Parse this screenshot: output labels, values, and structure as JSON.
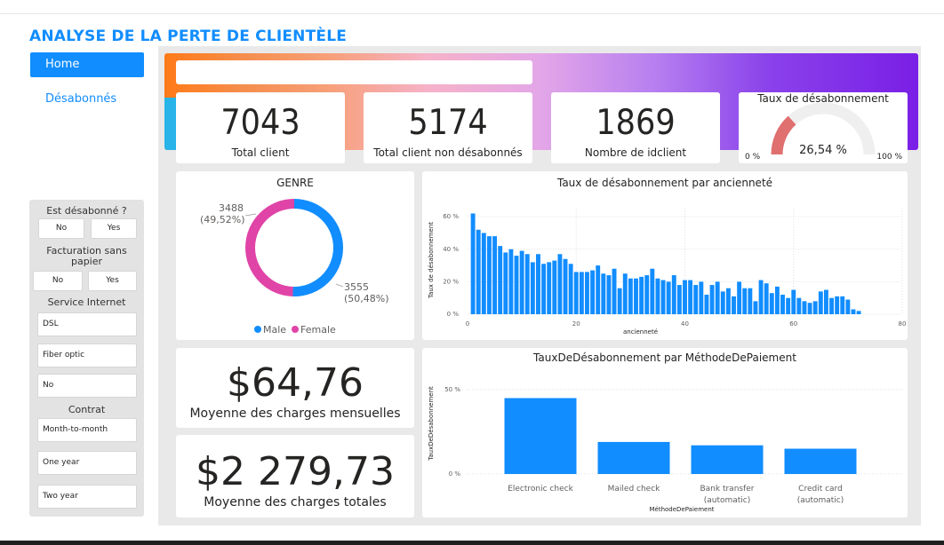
{
  "header": {
    "title": "ANALYSE DE LA PERTE DE CLIENTÈLE"
  },
  "nav": {
    "home": "Home",
    "unsubscribed": "Désabonnés"
  },
  "filters": {
    "churn_title": "Est désabonné ?",
    "churn_options": [
      "No",
      "Yes"
    ],
    "paperless_title": "Facturation sans papier",
    "paperless_options": [
      "No",
      "Yes"
    ],
    "internet_title": "Service Internet",
    "internet_options": [
      "DSL",
      "Fiber optic",
      "No"
    ],
    "contract_title": "Contrat",
    "contract_options": [
      "Month-to-month",
      "One year",
      "Two year"
    ]
  },
  "search": {
    "placeholder": ""
  },
  "kpis": [
    {
      "value": "7043",
      "label": "Total client"
    },
    {
      "value": "5174",
      "label": "Total client non désabonnés"
    },
    {
      "value": "1869",
      "label": "Nombre de idclient"
    }
  ],
  "gauge": {
    "title": "Taux de désabonnement",
    "value_label": "26,54 %",
    "value": 0.2654,
    "min_label": "0 %",
    "max_label": "100 %",
    "fill_color": "#E06F6F"
  },
  "money": {
    "monthly_value": "$64,76",
    "monthly_label": "Moyenne des charges mensuelles",
    "total_value": "$2 279,73",
    "total_label": "Moyenne des charges totales"
  },
  "colors": {
    "accent": "#118DFF",
    "female": "#E044A7"
  },
  "chart_data": [
    {
      "type": "donut",
      "title": "GENRE",
      "categories": [
        "Male",
        "Female"
      ],
      "values": [
        3555,
        3488
      ],
      "labels": [
        "3555\n(50,48%)",
        "3488\n(49,52%)"
      ],
      "colors": [
        "#118DFF",
        "#E044A7"
      ],
      "legend": "bottom"
    },
    {
      "type": "bar",
      "title": "Taux de désabonnement par ancienneté",
      "xlabel": "ancienneté",
      "ylabel": "Taux de désabonnement",
      "xlim": [
        0,
        80
      ],
      "ylim": [
        0,
        65
      ],
      "xticks": [
        "0",
        "20",
        "40",
        "60",
        "80"
      ],
      "yticks": [
        "0 %",
        "20 %",
        "40 %",
        "60 %"
      ],
      "x": [
        1,
        2,
        3,
        4,
        5,
        6,
        7,
        8,
        9,
        10,
        11,
        12,
        13,
        14,
        15,
        16,
        17,
        18,
        19,
        20,
        21,
        22,
        23,
        24,
        25,
        26,
        27,
        28,
        29,
        30,
        31,
        32,
        33,
        34,
        35,
        36,
        37,
        38,
        39,
        40,
        41,
        42,
        43,
        44,
        45,
        46,
        47,
        48,
        49,
        50,
        51,
        52,
        53,
        54,
        55,
        56,
        57,
        58,
        59,
        60,
        61,
        62,
        63,
        64,
        65,
        66,
        67,
        68,
        69,
        70,
        71,
        72
      ],
      "values": [
        62,
        52,
        50,
        48,
        48,
        42,
        38,
        40,
        36,
        39,
        37,
        32,
        37,
        31,
        32,
        33,
        37,
        34,
        31,
        26,
        26,
        26,
        27,
        30,
        25,
        24,
        28,
        16,
        25,
        22,
        22,
        23,
        24,
        28,
        22,
        21,
        20,
        24,
        18,
        21,
        21,
        18,
        20,
        12,
        18,
        20,
        14,
        16,
        11,
        20,
        16,
        16,
        8,
        21,
        19,
        13,
        17,
        12,
        10,
        15,
        10,
        8,
        7,
        8,
        14,
        15,
        10,
        11,
        11,
        9,
        3,
        2
      ]
    },
    {
      "type": "bar",
      "title": "TauxDeDésabonnement par MéthodeDePaiement",
      "xlabel": "MéthodeDePaiement",
      "ylabel": "TauxDeDésabonnement",
      "ylim": [
        0,
        50
      ],
      "yticks": [
        "0 %",
        "50 %"
      ],
      "categories": [
        "Electronic check",
        "Mailed check",
        "Bank transfer (automatic)",
        "Credit card (automatic)"
      ],
      "values": [
        45,
        19,
        17,
        15
      ]
    }
  ]
}
